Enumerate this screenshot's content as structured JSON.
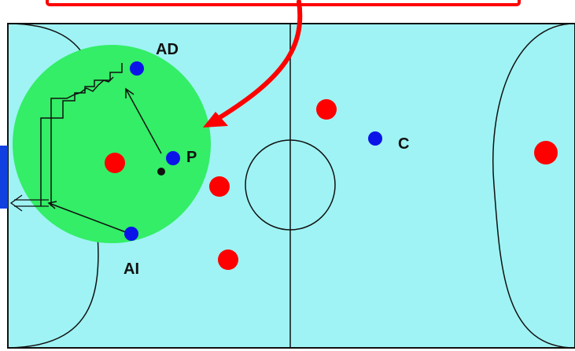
{
  "colors": {
    "court": "#9ff3f4",
    "zone": "#33ee66",
    "team_blue": "#0a14e8",
    "team_red": "#ff0000",
    "lines": "#111111",
    "callout_arrow": "#ff0000",
    "side_bar": "#1040e0"
  },
  "players": {
    "ad": {
      "label": "AD"
    },
    "p": {
      "label": "P"
    },
    "ai": {
      "label": "AI"
    },
    "c": {
      "label": "C"
    }
  },
  "icons": {
    "ball": "ball-icon",
    "pass_arrow": "arrow-icon",
    "callout": "curved-arrow-icon"
  }
}
